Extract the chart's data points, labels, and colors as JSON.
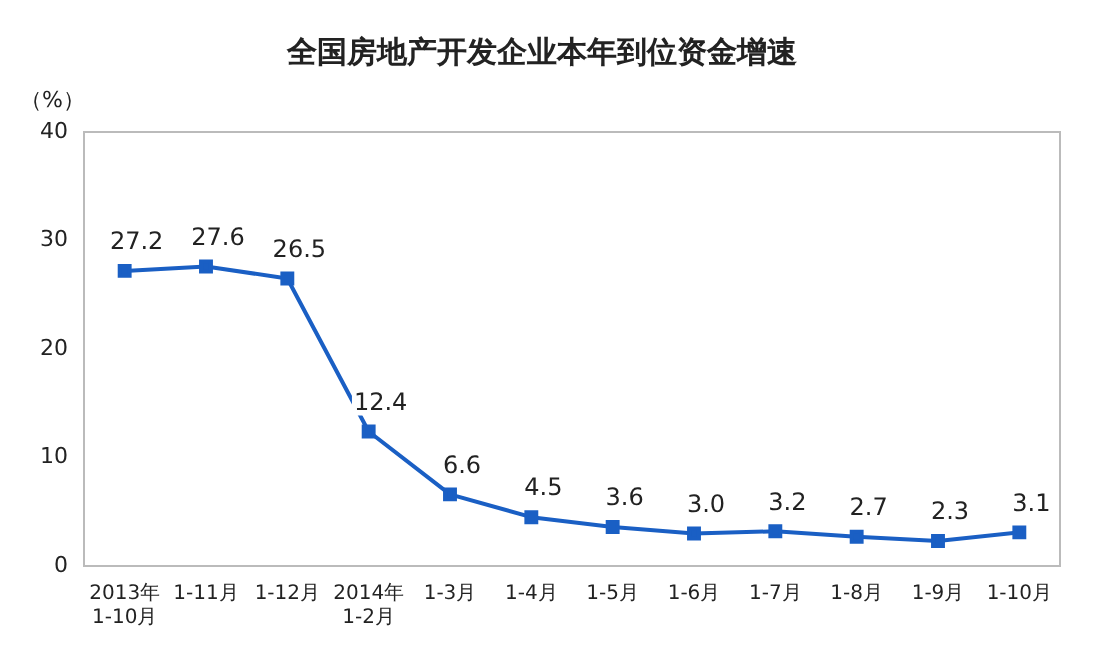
{
  "chart_data": {
    "type": "line",
    "title": "全国房地产开发企业本年到位资金增速",
    "ylabel": "（%）",
    "categories": [
      "2013年\n1-10月",
      "1-11月",
      "1-12月",
      "2014年\n1-2月",
      "1-3月",
      "1-4月",
      "1-5月",
      "1-6月",
      "1-7月",
      "1-8月",
      "1-9月",
      "1-10月"
    ],
    "series": [
      {
        "color": "#1a5fc4",
        "values": [
          27.2,
          27.6,
          26.5,
          12.4,
          6.6,
          4.5,
          3.6,
          3.0,
          3.2,
          2.7,
          2.3,
          3.1
        ],
        "value_labels": [
          "27.2",
          "27.6",
          "26.5",
          "12.4",
          "6.6",
          "4.5",
          "3.6",
          "3.0",
          "3.2",
          "2.7",
          "2.3",
          "3.1"
        ]
      }
    ],
    "ylim": [
      0,
      40
    ],
    "yticks": [
      0,
      10,
      20,
      30,
      40
    ],
    "grid": false,
    "legend": false,
    "marker": "square",
    "line_style": "solid"
  }
}
